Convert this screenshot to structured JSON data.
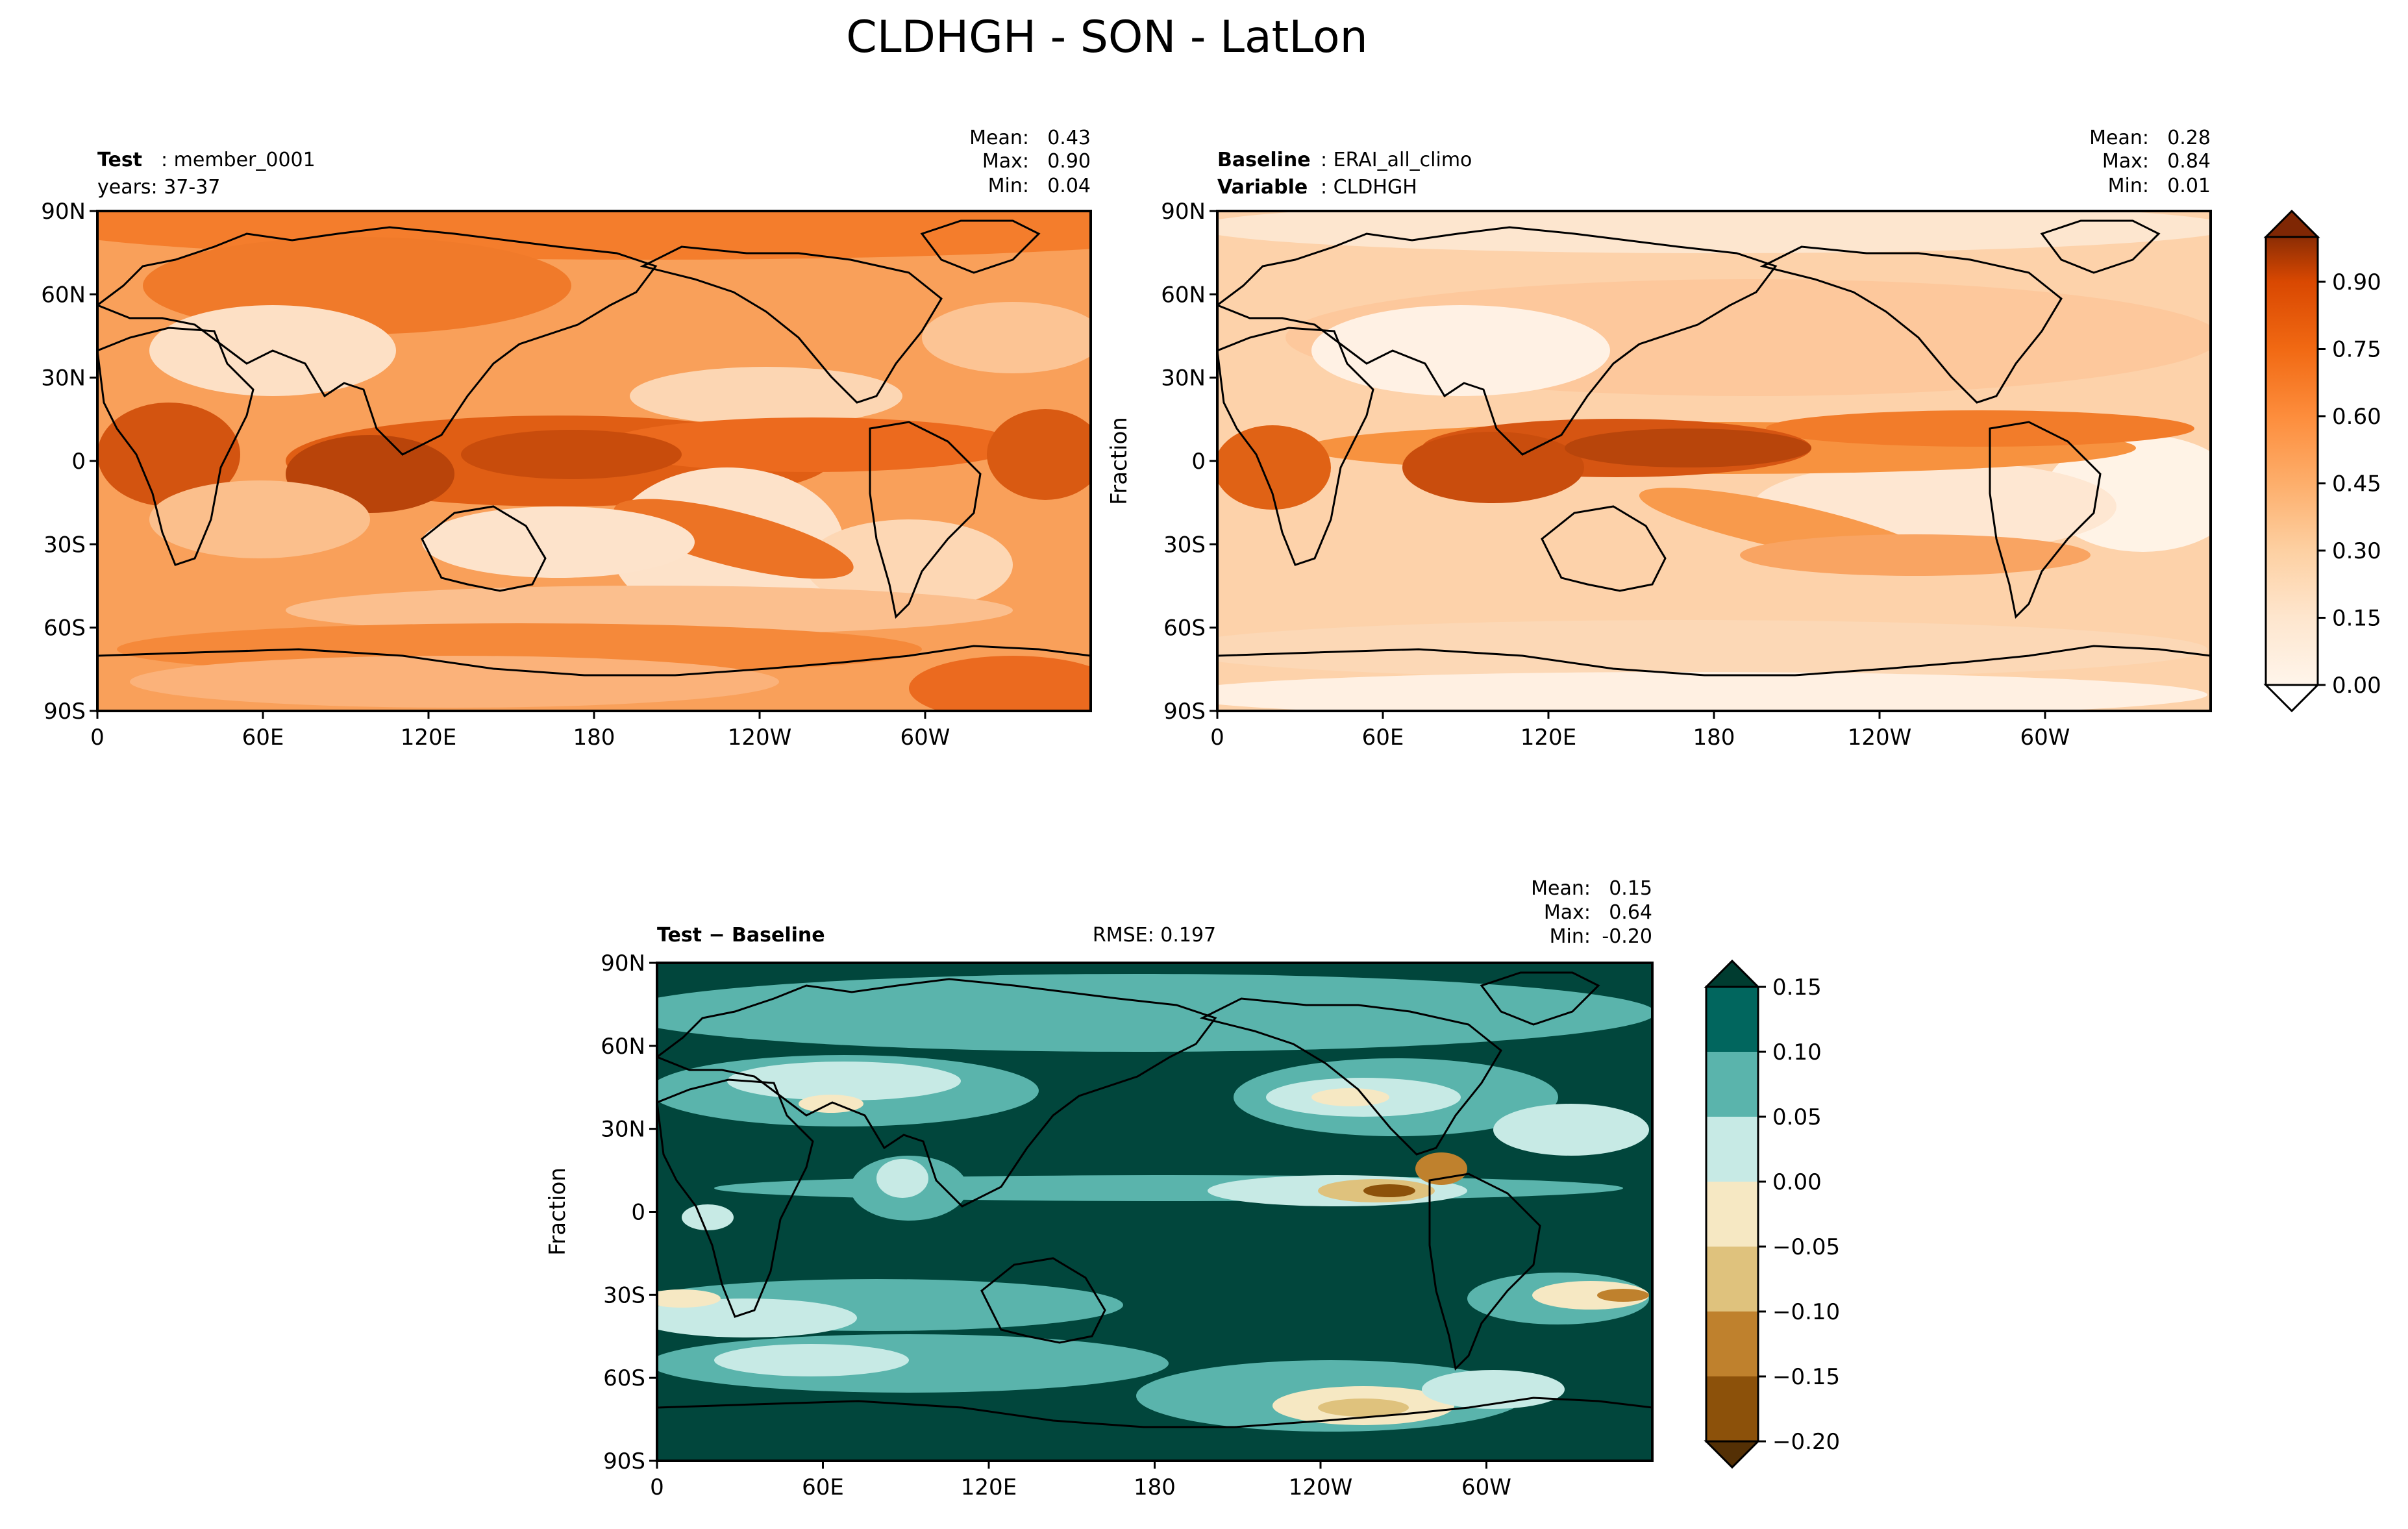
{
  "figure": {
    "title": "CLDHGH - SON - LatLon"
  },
  "chart_data": [
    {
      "type": "heatmap",
      "name": "test-map",
      "header": {
        "bold": "Test",
        "text": ": member_0001",
        "line2": "years: 37-37"
      },
      "stats": {
        "mean_label": "Mean:",
        "mean": "0.43",
        "max_label": "Max:",
        "max": "0.90",
        "min_label": "Min:",
        "min": "0.04"
      },
      "ylabel": "",
      "xticks": [
        "0",
        "60E",
        "120E",
        "180",
        "120W",
        "60W"
      ],
      "yticks": [
        "90N",
        "60N",
        "30N",
        "0",
        "30S",
        "60S",
        "90S"
      ],
      "xlim": [
        0,
        360
      ],
      "ylim": [
        -90,
        90
      ],
      "colorscale": "Oranges",
      "value_range": [
        0.0,
        1.0
      ]
    },
    {
      "type": "heatmap",
      "name": "baseline-map",
      "header": {
        "bold": "Baseline",
        "text": ": ERAI_all_climo",
        "bold2": "Variable",
        "text2": ": CLDHGH"
      },
      "stats": {
        "mean_label": "Mean:",
        "mean": "0.28",
        "max_label": "Max:",
        "max": "0.84",
        "min_label": "Min:",
        "min": "0.01"
      },
      "ylabel": "Fraction",
      "xticks": [
        "0",
        "60E",
        "120E",
        "180",
        "120W",
        "60W"
      ],
      "yticks": [
        "90N",
        "60N",
        "30N",
        "0",
        "30S",
        "60S",
        "90S"
      ],
      "xlim": [
        0,
        360
      ],
      "ylim": [
        -90,
        90
      ],
      "colorscale": "Oranges",
      "value_range": [
        0.0,
        1.0
      ],
      "colorbar": {
        "ticks": [
          "0.90",
          "0.75",
          "0.60",
          "0.45",
          "0.30",
          "0.15",
          "0.00"
        ],
        "tick_values": [
          0.9,
          0.75,
          0.6,
          0.45,
          0.3,
          0.15,
          0.0
        ],
        "extend": "both"
      }
    },
    {
      "type": "heatmap",
      "name": "difference-map",
      "header": {
        "bold": "Test − Baseline",
        "rmse": "RMSE: 0.197"
      },
      "stats": {
        "mean_label": "Mean:",
        "mean": "0.15",
        "max_label": "Max:",
        "max": "0.64",
        "min_label": "Min:",
        "min": "-0.20"
      },
      "ylabel": "Fraction",
      "xticks": [
        "0",
        "60E",
        "120E",
        "180",
        "120W",
        "60W"
      ],
      "yticks": [
        "90N",
        "60N",
        "30N",
        "0",
        "30S",
        "60S",
        "90S"
      ],
      "xlim": [
        0,
        360
      ],
      "ylim": [
        -90,
        90
      ],
      "colorscale": "BrBG",
      "value_range": [
        -0.2,
        0.15
      ],
      "colorbar": {
        "ticks": [
          "0.15",
          "0.10",
          "0.05",
          "0.00",
          "−0.05",
          "−0.10",
          "−0.15",
          "−0.20"
        ],
        "tick_values": [
          0.15,
          0.1,
          0.05,
          0.0,
          -0.05,
          -0.1,
          -0.15,
          -0.2
        ],
        "levels": [
          {
            "value": 0.125,
            "color": "#01665e"
          },
          {
            "value": 0.075,
            "color": "#5ab4ac"
          },
          {
            "value": 0.025,
            "color": "#c7eae5"
          },
          {
            "value": -0.025,
            "color": "#f6e8c3"
          },
          {
            "value": -0.075,
            "color": "#dfc27d"
          },
          {
            "value": -0.125,
            "color": "#bf812d"
          },
          {
            "value": -0.175,
            "color": "#8c510a"
          }
        ],
        "extend": "both"
      }
    }
  ],
  "colors": {
    "orange_dark": "#7f2704",
    "teal_dark": "#003c30",
    "brown_dark": "#543005"
  }
}
